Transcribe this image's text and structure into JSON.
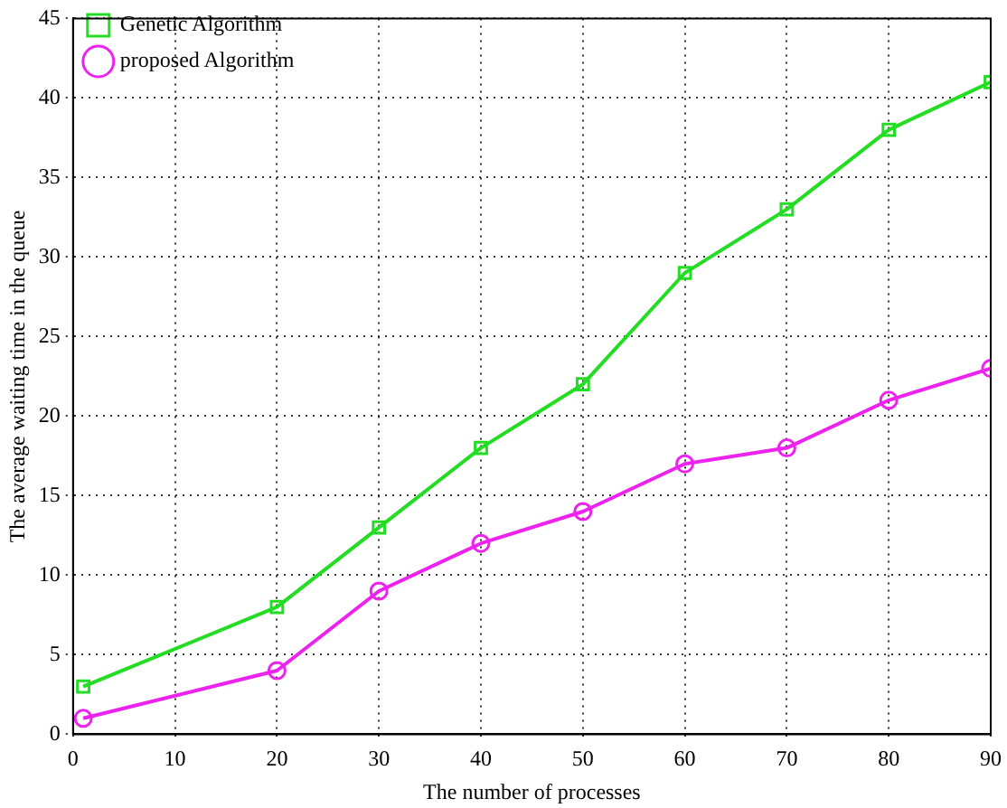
{
  "chart_data": {
    "type": "line",
    "xlabel": "The number of processes",
    "ylabel": "The average waiting time in the queue",
    "x": [
      1,
      20,
      30,
      40,
      50,
      60,
      70,
      80,
      90
    ],
    "series": [
      {
        "name": "Genetic Algorithm",
        "color": "#22dd22",
        "marker": "square",
        "values": [
          3,
          8,
          13,
          18,
          22,
          29,
          33,
          38,
          41
        ]
      },
      {
        "name": "proposed Algorithm",
        "color": "#ee22ee",
        "marker": "circle",
        "values": [
          1,
          4,
          9,
          12,
          14,
          17,
          18,
          21,
          23
        ]
      }
    ],
    "xlim": [
      0,
      90
    ],
    "xticks": [
      0,
      10,
      20,
      30,
      40,
      50,
      60,
      70,
      80,
      90
    ],
    "ylim": [
      0,
      45
    ],
    "yticks": [
      0,
      5,
      10,
      15,
      20,
      25,
      30,
      35,
      40,
      45
    ],
    "grid": true,
    "legend": "top left",
    "line_style": "solid"
  }
}
